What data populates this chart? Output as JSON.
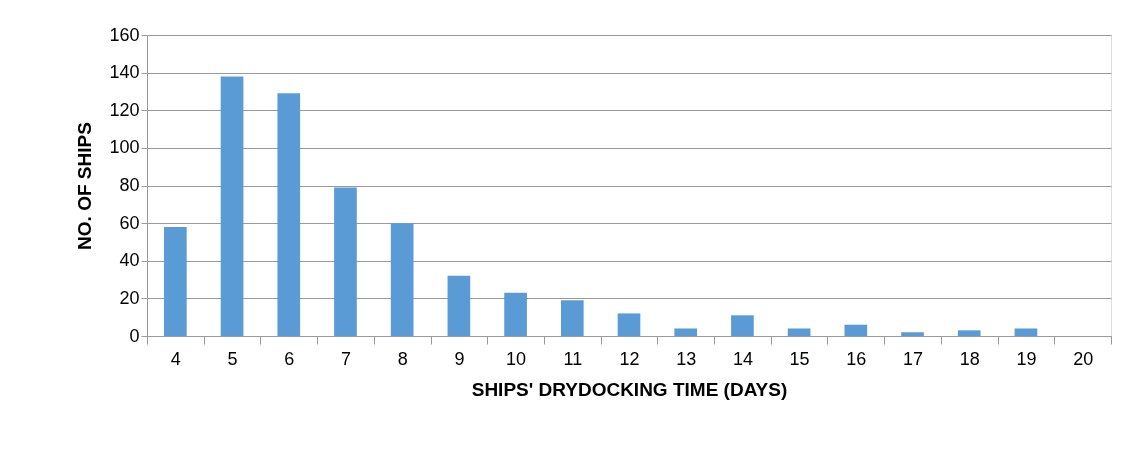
{
  "chart_data": {
    "type": "bar",
    "xlabel": "SHIPS' DRYDOCKING TIME (DAYS)",
    "ylabel": "NO. OF SHIPS",
    "categories": [
      "4",
      "5",
      "6",
      "7",
      "8",
      "9",
      "10",
      "11",
      "12",
      "13",
      "14",
      "15",
      "16",
      "17",
      "18",
      "19",
      "20"
    ],
    "values": [
      58,
      138,
      129,
      79,
      60,
      32,
      23,
      19,
      12,
      4,
      11,
      4,
      6,
      2,
      3,
      4,
      0
    ],
    "color": "#5b9bd5",
    "ylim": [
      0,
      160
    ],
    "yticks": [
      0,
      20,
      40,
      60,
      80,
      100,
      120,
      140,
      160
    ],
    "grid": "y"
  }
}
